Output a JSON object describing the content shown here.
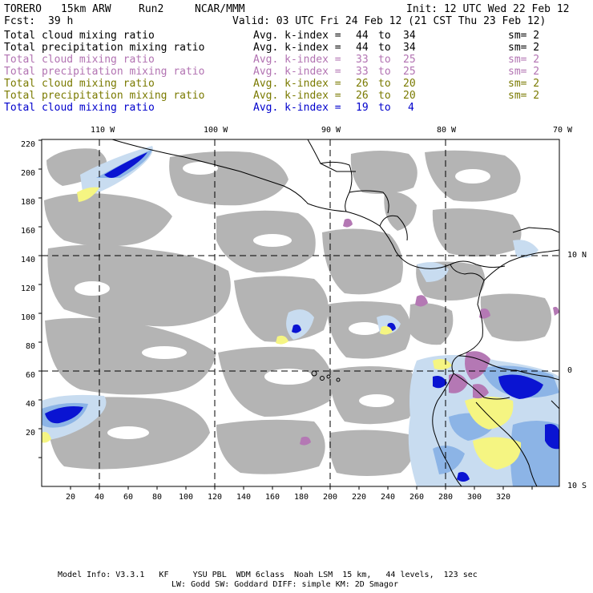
{
  "header": {
    "model": "TORERO",
    "resolution": "15km ARW",
    "run": "Run2",
    "org": "NCAR/MMM",
    "init": "Init: 12 UTC Wed 22 Feb 12",
    "fcst_label": "Fcst:",
    "fcst_value": "39 h",
    "valid": "Valid: 03 UTC Fri 24 Feb 12 (21 CST Thu 23 Feb 12)"
  },
  "legend": [
    {
      "field": "Total cloud mixing ratio",
      "kindex": "Avg. k-index =",
      "from": "44",
      "to_word": "to",
      "to": "34",
      "sm": "sm= 2",
      "color": "#000000"
    },
    {
      "field": "Total precipitation mixing ratio",
      "kindex": "Avg. k-index =",
      "from": "44",
      "to_word": "to",
      "to": "34",
      "sm": "sm= 2",
      "color": "#000000"
    },
    {
      "field": "Total cloud mixing ratio",
      "kindex": "Avg. k-index =",
      "from": "33",
      "to_word": "to",
      "to": "25",
      "sm": "sm= 2",
      "color": "#b273b2"
    },
    {
      "field": "Total precipitation mixing ratio",
      "kindex": "Avg. k-index =",
      "from": "33",
      "to_word": "to",
      "to": "25",
      "sm": "sm= 2",
      "color": "#b273b2"
    },
    {
      "field": "Total cloud mixing ratio",
      "kindex": "Avg. k-index =",
      "from": "26",
      "to_word": "to",
      "to": "20",
      "sm": "sm= 2",
      "color": "#7a7a00"
    },
    {
      "field": "Total precipitation mixing ratio",
      "kindex": "Avg. k-index =",
      "from": "26",
      "to_word": "to",
      "to": "20",
      "sm": "sm= 2",
      "color": "#7a7a00"
    },
    {
      "field": "Total cloud mixing ratio",
      "kindex": "Avg. k-index =",
      "from": "19",
      "to_word": "to",
      "to": "4",
      "sm": "",
      "color": "#0000cc"
    }
  ],
  "axes": {
    "lon_labels": [
      "110 W",
      "100 W",
      "90 W",
      "80 W",
      "70 W"
    ],
    "lat_labels": [
      "10 N",
      "0",
      "10 S"
    ],
    "x_ticks": [
      "20",
      "40",
      "60",
      "80",
      "100",
      "120",
      "140",
      "160",
      "180",
      "200",
      "220",
      "240",
      "260",
      "280",
      "300",
      "320"
    ],
    "y_ticks": [
      "220",
      "200",
      "180",
      "160",
      "140",
      "120",
      "100",
      "80",
      "60",
      "40",
      "20"
    ]
  },
  "footer": {
    "line1": "Model Info: V3.3.1   KF     YSU PBL  WDM 6class  Noah LSM  15 km,   44 levels,  123 sec",
    "line2": "LW: Godd SW: Goddard DIFF: simple KM: 2D Smagor"
  },
  "colors": {
    "cloud_gray": "#b4b4b4",
    "light_blue": "#c8dcf0",
    "mid_blue": "#8cb4e6",
    "deep_blue": "#0a14d2",
    "yellow": "#f5f582",
    "purple": "#b478b4"
  }
}
